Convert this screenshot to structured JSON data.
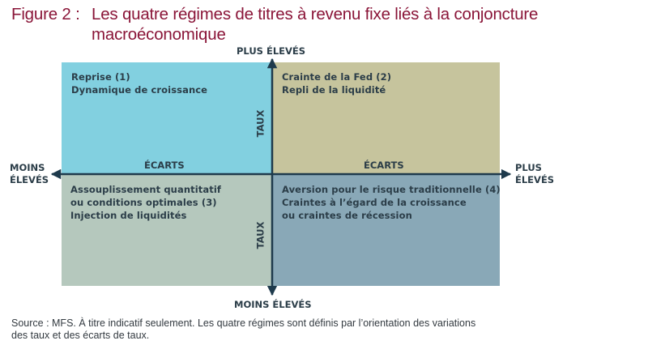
{
  "title": {
    "number": "Figure 2 :",
    "line1": "Les quatre régimes de titres à revenu fixe liés à la conjoncture",
    "line2": "macroéconomique"
  },
  "axes": {
    "top": "PLUS ÉLEVÉS",
    "bottom": "MOINS ÉLEVÉS",
    "left": [
      "MOINS",
      "ÉLEVÉS"
    ],
    "right": [
      "PLUS",
      "ÉLEVÉS"
    ],
    "spread_label": "ÉCARTS",
    "rate_label": "TAUX"
  },
  "quadrants": {
    "top_left": [
      "Reprise (1)",
      "Dynamique de croissance"
    ],
    "top_right": [
      "Crainte de la Fed (2)",
      "Repli de la liquidité"
    ],
    "bottom_left": [
      "Assouplissement quantitatif",
      "ou conditions optimales (3)",
      "Injection de liquidités"
    ],
    "bottom_right": [
      "Aversion pour le risque traditionnelle (4)",
      "Craintes à l’égard de la croissance",
      "ou craintes de récession"
    ]
  },
  "colors": {
    "title": "#8a1538",
    "top_left": "#82d0e0",
    "top_right": "#c6c49d",
    "bottom_left": "#b5c8bd",
    "bottom_right": "#89a8b7",
    "axis": "#1e3a4c"
  },
  "source": [
    "Source : MFS. À titre indicatif seulement. Les quatre régimes sont définis par l’orientation des variations",
    "des taux et des écarts de taux."
  ]
}
